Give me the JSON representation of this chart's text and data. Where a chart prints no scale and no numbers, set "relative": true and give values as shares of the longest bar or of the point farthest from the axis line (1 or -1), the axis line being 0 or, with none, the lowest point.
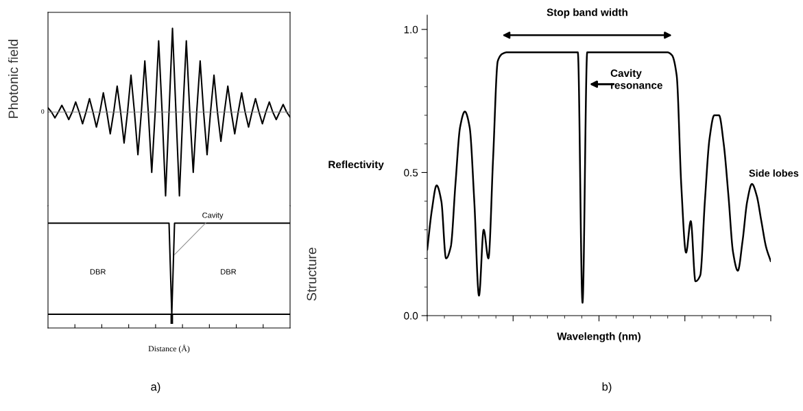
{
  "chart_data": [
    {
      "type": "line",
      "relative": true,
      "ylabel": "Photonic field",
      "categories": [
        null,
        null,
        null,
        null,
        null,
        null,
        null,
        null,
        null,
        null,
        null,
        null,
        null,
        null,
        null,
        null,
        null,
        null,
        null,
        null,
        null,
        null,
        null,
        null,
        null,
        null,
        null,
        null,
        null,
        null,
        null,
        null,
        null,
        null,
        null,
        null,
        null,
        null,
        null,
        null,
        null,
        null,
        null,
        null,
        null,
        null,
        null,
        null,
        null,
        null,
        null,
        null,
        null,
        null,
        null,
        null,
        null,
        null,
        null,
        null,
        null,
        null,
        null,
        null,
        null,
        null,
        null,
        null,
        null,
        null,
        null
      ],
      "series": [
        {
          "color": "#000000",
          "values": [
            0.05,
            0,
            -0.07,
            0,
            0.08,
            0,
            -0.09,
            0,
            0.12,
            0,
            -0.14,
            0,
            0.16,
            0,
            -0.18,
            0,
            0.23,
            0,
            -0.26,
            0,
            0.31,
            0,
            -0.37,
            0,
            0.44,
            0,
            -0.51,
            0,
            0.61,
            0,
            -0.72,
            0,
            0.85,
            0,
            -1.0,
            0,
            1.0,
            0,
            -1.0,
            0,
            0.85,
            0,
            -0.72,
            0,
            0.61,
            0,
            -0.51,
            0,
            0.44,
            0,
            -0.35,
            0,
            0.31,
            0,
            -0.26,
            0,
            0.23,
            0,
            -0.18,
            0,
            0.16,
            0,
            -0.14,
            0,
            0.12,
            0,
            -0.09,
            0,
            0.09,
            0,
            -0.06
          ]
        }
      ],
      "ref_lines": [
        {
          "axis": "y",
          "value": 0,
          "label": "0",
          "color": "#808080"
        }
      ]
    },
    {
      "type": "line",
      "relative": true,
      "ylabel": "Structure",
      "xlabel": "Distance (Å)",
      "categories": [
        null,
        null,
        null,
        null,
        null,
        null,
        null,
        null,
        null,
        null,
        null,
        null,
        null,
        null,
        null,
        null,
        null,
        null,
        null,
        null,
        null,
        null,
        null,
        null,
        null,
        null,
        null,
        null,
        null,
        null,
        null,
        null,
        null,
        null,
        null,
        null,
        null,
        null,
        null,
        null,
        null,
        null,
        null,
        null,
        null,
        null,
        null,
        null,
        null,
        null,
        null,
        null,
        null,
        null,
        null,
        null,
        null,
        null,
        null,
        null,
        null,
        null,
        null,
        null,
        null,
        null,
        null,
        null,
        null,
        null,
        null,
        null,
        null,
        null,
        null,
        null,
        null,
        null,
        null,
        null,
        null,
        null,
        null,
        null,
        null,
        null,
        null,
        null,
        null
      ],
      "series": [
        {
          "color": "#000000",
          "values": [
            1,
            1,
            1,
            1,
            1,
            1,
            1,
            1,
            1,
            1,
            1,
            1,
            1,
            1,
            1,
            1,
            1,
            1,
            1,
            1,
            1,
            1,
            1,
            1,
            1,
            1,
            1,
            1,
            1,
            1,
            1,
            1,
            1,
            1,
            1,
            1,
            1,
            1,
            1,
            1,
            1,
            1,
            1,
            1,
            1,
            0,
            1,
            1,
            1,
            1,
            1,
            1,
            1,
            1,
            1,
            1,
            1,
            1,
            1,
            1,
            1,
            1,
            1,
            1,
            1,
            1,
            1,
            1,
            1,
            1,
            1,
            1,
            1,
            1,
            1,
            1,
            1,
            1,
            1,
            1,
            1,
            1,
            1,
            1,
            1,
            1,
            1,
            1,
            1
          ]
        }
      ],
      "annotations": [
        "Cavity",
        "DBR",
        "DBR",
        "a)"
      ]
    },
    {
      "type": "line",
      "ylabel": "Reflectivity",
      "xlabel": "Wavelength (nm)",
      "categories": [
        null,
        null,
        null,
        null,
        null,
        null,
        null,
        null,
        null,
        null,
        null,
        null,
        null,
        null,
        null,
        null,
        null,
        null,
        null,
        null,
        null,
        null,
        null,
        null,
        null,
        null,
        null,
        null,
        null,
        null,
        null,
        null,
        null,
        null,
        null,
        null,
        null,
        null,
        null,
        null,
        null,
        null,
        null,
        null,
        null,
        null,
        null,
        null,
        null,
        null,
        null,
        null,
        null,
        null,
        null,
        null,
        null,
        null,
        null,
        null,
        null,
        null,
        null,
        null,
        null,
        null,
        null,
        null,
        null,
        null,
        null,
        null,
        null,
        null
      ],
      "series": [
        {
          "color": "#000000",
          "values": [
            0.23,
            0.37,
            0.455,
            0.4,
            0.2,
            0.24,
            0.46,
            0.66,
            0.713,
            0.66,
            0.4,
            0.07,
            0.3,
            0.2,
            0.55,
            0.89,
            0.915,
            0.92,
            0.92,
            0.92,
            0.92,
            0.92,
            0.92,
            0.92,
            0.92,
            0.92,
            0.92,
            0.92,
            0.92,
            0.92,
            0.92,
            0.92,
            0.92,
            0.045,
            0.92,
            0.92,
            0.92,
            0.92,
            0.92,
            0.92,
            0.92,
            0.92,
            0.92,
            0.92,
            0.92,
            0.92,
            0.92,
            0.92,
            0.92,
            0.92,
            0.92,
            0.92,
            0.91,
            0.84,
            0.45,
            0.22,
            0.33,
            0.12,
            0.14,
            0.4,
            0.62,
            0.7,
            0.7,
            0.6,
            0.42,
            0.22,
            0.157,
            0.26,
            0.4,
            0.46,
            0.42,
            0.33,
            0.24,
            0.19
          ]
        }
      ],
      "ylim": [
        0,
        1.05
      ],
      "yticks": [
        {
          "value": 0,
          "label": "0.0"
        },
        {
          "value": 0.5,
          "label": "0.5"
        },
        {
          "value": 1.0,
          "label": "1.0"
        }
      ],
      "annotations": [
        "Stop band width",
        "Cavity\nresonance",
        "Side lobes",
        "b)"
      ]
    }
  ]
}
